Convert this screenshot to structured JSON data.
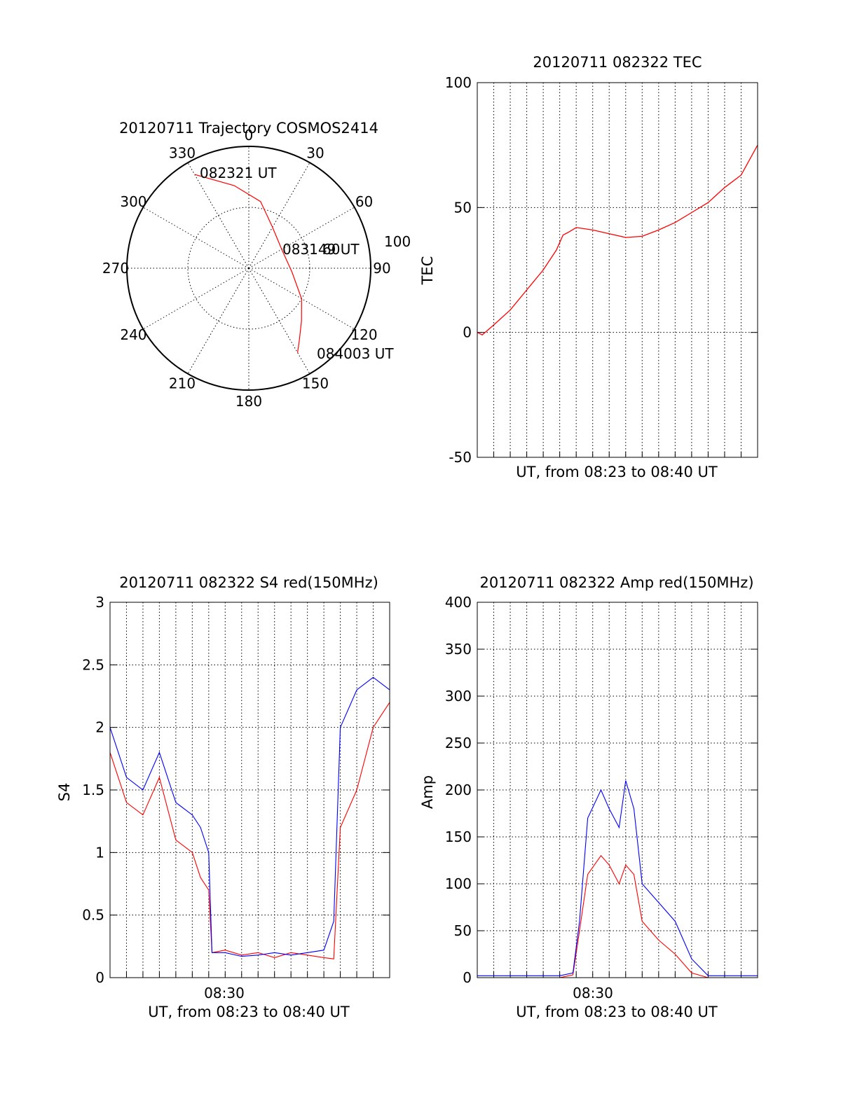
{
  "colors": {
    "red": "#ff0000",
    "blue": "#0000ff",
    "axis": "#000000"
  },
  "chart_data": [
    {
      "type": "polar",
      "title": "20120711 Trajectory COSMOS2414",
      "angle_labels": [
        "0",
        "30",
        "60",
        "90",
        "120",
        "150",
        "180",
        "210",
        "240",
        "270",
        "300",
        "330"
      ],
      "radial_labels": [
        "60",
        "100"
      ],
      "track_color": "red",
      "trajectory": [
        {
          "azimuth_deg": 330,
          "elevation_deg": 10
        },
        {
          "azimuth_deg": 350,
          "elevation_deg": 28
        },
        {
          "azimuth_deg": 10,
          "elevation_deg": 40
        },
        {
          "azimuth_deg": 30,
          "elevation_deg": 55
        },
        {
          "azimuth_deg": 60,
          "elevation_deg": 62
        },
        {
          "azimuth_deg": 95,
          "elevation_deg": 58
        },
        {
          "azimuth_deg": 120,
          "elevation_deg": 45
        },
        {
          "azimuth_deg": 135,
          "elevation_deg": 35
        },
        {
          "azimuth_deg": 145,
          "elevation_deg": 25
        },
        {
          "azimuth_deg": 150,
          "elevation_deg": 18
        }
      ],
      "annotations": [
        "082321 UT",
        "083149 UT",
        "084003 UT"
      ]
    },
    {
      "type": "line",
      "title": "20120711 082322 TEC",
      "xlabel": "UT, from 08:23 to 08:40 UT",
      "ylabel": "TEC",
      "ylim": [
        -50,
        100
      ],
      "xlim_minutes": [
        0,
        17
      ],
      "yticks": [
        -50,
        0,
        50,
        100
      ],
      "grid": true,
      "series": [
        {
          "color": "red",
          "x_minutes": [
            0,
            0.3,
            1,
            2,
            3,
            4,
            4.8,
            5.2,
            5.5,
            6,
            7,
            8,
            9,
            10,
            11,
            12,
            13,
            14,
            14.5,
            15,
            16,
            17
          ],
          "y": [
            0,
            -1,
            3,
            9,
            17,
            25,
            33,
            39,
            40,
            42,
            41,
            39.5,
            38,
            38.5,
            41,
            44,
            48,
            52,
            55,
            58,
            63,
            75
          ]
        }
      ]
    },
    {
      "type": "line",
      "title": "20120711 082322 S4 red(150MHz)",
      "xlabel": "UT, from 08:23 to 08:40 UT",
      "ylabel": "S4",
      "ylim": [
        0,
        3
      ],
      "xlim_minutes": [
        0,
        17
      ],
      "xtick_labels": [
        "08:30"
      ],
      "yticks": [
        0,
        0.5,
        1,
        1.5,
        2,
        2.5,
        3
      ],
      "grid": true,
      "series": [
        {
          "color": "red",
          "x_minutes": [
            0,
            1,
            2,
            3,
            4,
            5,
            5.5,
            6,
            6.2,
            7,
            8,
            9,
            10,
            11,
            12,
            13,
            13.6,
            14,
            15,
            16,
            17
          ],
          "y": [
            1.8,
            1.4,
            1.3,
            1.6,
            1.1,
            1.0,
            0.8,
            0.7,
            0.2,
            0.22,
            0.18,
            0.2,
            0.16,
            0.2,
            0.18,
            0.16,
            0.15,
            1.2,
            1.5,
            2.0,
            2.2
          ]
        },
        {
          "color": "blue",
          "x_minutes": [
            0,
            1,
            2,
            3,
            4,
            5,
            5.5,
            6,
            6.2,
            7,
            8,
            9,
            10,
            11,
            12,
            13,
            13.6,
            14,
            15,
            16,
            17
          ],
          "y": [
            2.0,
            1.6,
            1.5,
            1.8,
            1.4,
            1.3,
            1.2,
            1.0,
            0.2,
            0.2,
            0.17,
            0.18,
            0.2,
            0.18,
            0.2,
            0.22,
            0.45,
            2.0,
            2.3,
            2.4,
            2.3
          ]
        }
      ]
    },
    {
      "type": "line",
      "title": "20120711 082322 Amp red(150MHz)",
      "xlabel": "UT, from 08:23 to 08:40 UT",
      "ylabel": "Amp",
      "ylim": [
        0,
        400
      ],
      "xlim_minutes": [
        0,
        17
      ],
      "xtick_labels": [
        "08:30"
      ],
      "yticks": [
        0,
        50,
        100,
        150,
        200,
        250,
        300,
        350,
        400
      ],
      "grid": true,
      "series": [
        {
          "color": "red",
          "x_minutes": [
            0,
            5,
            5.8,
            6.2,
            6.7,
            7.5,
            8,
            8.6,
            9,
            9.5,
            10,
            11,
            12,
            13,
            14,
            17
          ],
          "y": [
            0,
            0,
            3,
            50,
            110,
            130,
            120,
            100,
            120,
            110,
            60,
            40,
            25,
            5,
            0,
            0
          ]
        },
        {
          "color": "blue",
          "x_minutes": [
            0,
            5,
            5.8,
            6.2,
            6.7,
            7.5,
            8,
            8.6,
            9,
            9.5,
            10,
            11,
            12,
            13,
            14,
            17
          ],
          "y": [
            2,
            2,
            5,
            60,
            170,
            200,
            180,
            160,
            210,
            180,
            100,
            80,
            60,
            20,
            2,
            2
          ]
        }
      ]
    }
  ]
}
